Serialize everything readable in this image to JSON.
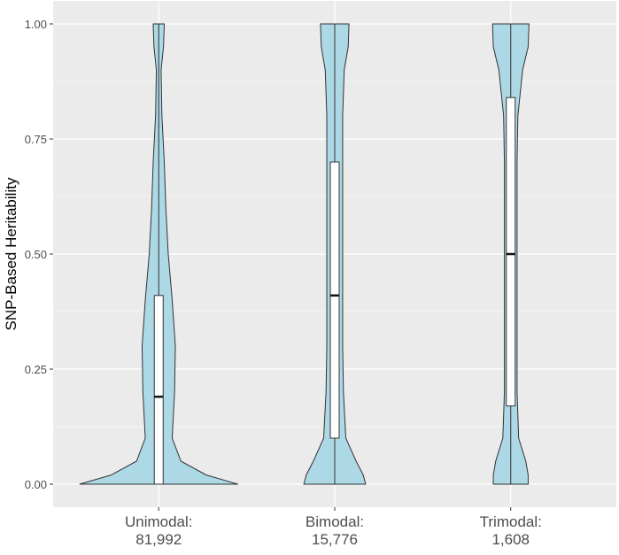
{
  "chart_data": {
    "type": "violin",
    "ylabel": "SNP-Based Heritability",
    "categories": [
      "Unimodal:\n81,992",
      "Bimodal:\n15,776",
      "Trimodal:\n1,608"
    ],
    "ylim": [
      -0.05,
      1.05
    ],
    "yticks": [
      {
        "value": 0,
        "label": "0.00"
      },
      {
        "value": 0.25,
        "label": "0.25"
      },
      {
        "value": 0.5,
        "label": "0.50"
      },
      {
        "value": 0.75,
        "label": "0.75"
      },
      {
        "value": 1,
        "label": "1.00"
      }
    ],
    "grid": true,
    "color": "#add8e6",
    "density_y": [
      0,
      0.02,
      0.05,
      0.1,
      0.2,
      0.3,
      0.4,
      0.5,
      0.6,
      0.7,
      0.8,
      0.9,
      0.95,
      1
    ],
    "density": [
      [
        1.0,
        0.6,
        0.28,
        0.17,
        0.2,
        0.21,
        0.17,
        0.12,
        0.09,
        0.07,
        0.04,
        0.03,
        0.06,
        0.07
      ],
      [
        0.39,
        0.36,
        0.27,
        0.14,
        0.11,
        0.1,
        0.1,
        0.1,
        0.1,
        0.1,
        0.1,
        0.12,
        0.17,
        0.18
      ],
      [
        0.22,
        0.22,
        0.19,
        0.1,
        0.08,
        0.08,
        0.08,
        0.08,
        0.08,
        0.08,
        0.09,
        0.15,
        0.22,
        0.23
      ]
    ],
    "box": [
      {
        "lower": 0,
        "q1": 0,
        "median": 0.19,
        "q3": 0.41,
        "upper": 1
      },
      {
        "lower": 0,
        "q1": 0.1,
        "median": 0.41,
        "q3": 0.7,
        "upper": 1
      },
      {
        "lower": 0,
        "q1": 0.17,
        "median": 0.5,
        "q3": 0.84,
        "upper": 1
      }
    ]
  }
}
